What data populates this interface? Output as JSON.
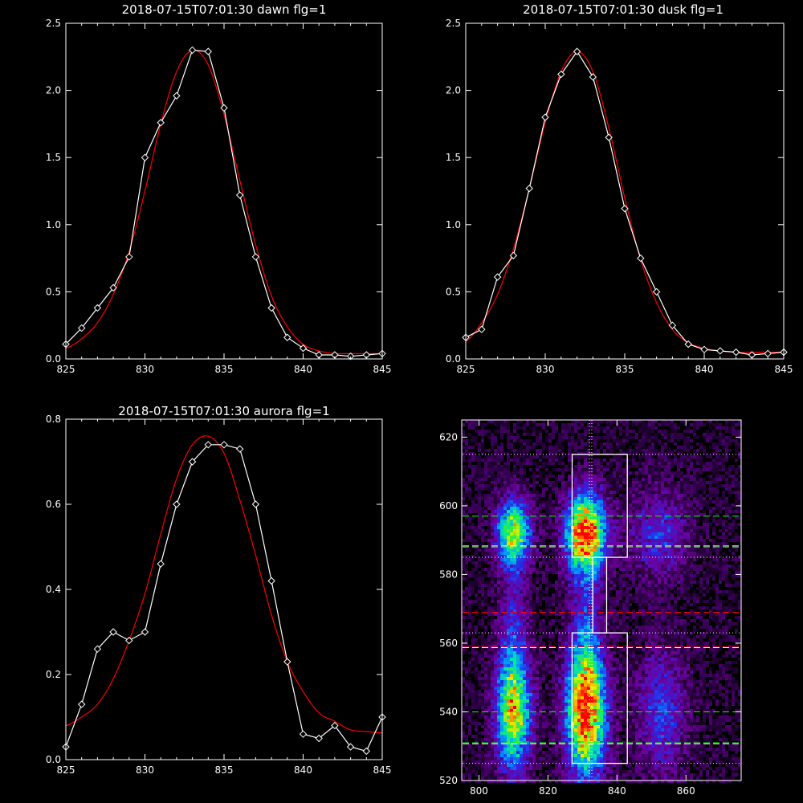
{
  "chart_data": [
    {
      "type": "line",
      "title": "2018-07-15T07:01:30 dawn flg=1",
      "xlim": [
        825,
        845
      ],
      "ylim": [
        0,
        2.5
      ],
      "x_ticks": [
        "825",
        "830",
        "835",
        "840",
        "845"
      ],
      "y_ticks": [
        "0.0",
        "0.5",
        "1.0",
        "1.5",
        "2.0",
        "2.5"
      ],
      "series": [
        {
          "color": "#ffffff",
          "marker": "diamond",
          "x": [
            825,
            826,
            827,
            828,
            829,
            830,
            831,
            832,
            833,
            834,
            835,
            836,
            837,
            838,
            839,
            840,
            841,
            842,
            843,
            844,
            845
          ],
          "y": [
            0.11,
            0.23,
            0.38,
            0.53,
            0.76,
            1.5,
            1.76,
            1.96,
            2.3,
            2.29,
            1.87,
            1.22,
            0.76,
            0.38,
            0.16,
            0.08,
            0.03,
            0.03,
            0.02,
            0.03,
            0.04
          ]
        },
        {
          "color": "#ff0000",
          "marker": "none",
          "x": [
            825,
            826,
            827,
            828,
            829,
            830,
            831,
            832,
            833,
            834,
            835,
            836,
            837,
            838,
            839,
            840,
            841,
            842,
            843,
            844,
            845
          ],
          "y": [
            0.08,
            0.15,
            0.27,
            0.48,
            0.8,
            1.25,
            1.75,
            2.14,
            2.3,
            2.19,
            1.82,
            1.33,
            0.85,
            0.47,
            0.24,
            0.11,
            0.06,
            0.04,
            0.04,
            0.04,
            0.04
          ]
        }
      ]
    },
    {
      "type": "line",
      "title": "2018-07-15T07:01:30 dusk flg=1",
      "xlim": [
        825,
        845
      ],
      "ylim": [
        0,
        2.5
      ],
      "x_ticks": [
        "825",
        "830",
        "835",
        "840",
        "845"
      ],
      "y_ticks": [
        "0.0",
        "0.5",
        "1.0",
        "1.5",
        "2.0",
        "2.5"
      ],
      "series": [
        {
          "color": "#ffffff",
          "marker": "diamond",
          "x": [
            825,
            826,
            827,
            828,
            829,
            830,
            831,
            832,
            833,
            834,
            835,
            836,
            837,
            838,
            839,
            840,
            841,
            842,
            843,
            844,
            845
          ],
          "y": [
            0.16,
            0.22,
            0.61,
            0.77,
            1.27,
            1.8,
            2.12,
            2.29,
            2.1,
            1.65,
            1.12,
            0.75,
            0.5,
            0.25,
            0.11,
            0.07,
            0.06,
            0.05,
            0.03,
            0.04,
            0.05
          ]
        },
        {
          "color": "#ff0000",
          "marker": "none",
          "x": [
            825,
            826,
            827,
            828,
            829,
            830,
            831,
            832,
            833,
            834,
            835,
            836,
            837,
            838,
            839,
            840,
            841,
            842,
            843,
            844,
            845
          ],
          "y": [
            0.13,
            0.27,
            0.48,
            0.82,
            1.27,
            1.76,
            2.14,
            2.29,
            2.14,
            1.72,
            1.2,
            0.74,
            0.42,
            0.22,
            0.12,
            0.08,
            0.06,
            0.05,
            0.05,
            0.05,
            0.05
          ]
        }
      ]
    },
    {
      "type": "line",
      "title": "2018-07-15T07:01:30 aurora flg=1",
      "xlim": [
        825,
        845
      ],
      "ylim": [
        0,
        0.8
      ],
      "x_ticks": [
        "825",
        "830",
        "835",
        "840",
        "845"
      ],
      "y_ticks": [
        "0.0",
        "0.2",
        "0.4",
        "0.6",
        "0.8"
      ],
      "series": [
        {
          "color": "#ffffff",
          "marker": "diamond",
          "x": [
            825,
            826,
            827,
            828,
            829,
            830,
            831,
            832,
            833,
            834,
            835,
            836,
            837,
            838,
            839,
            840,
            841,
            842,
            843,
            844,
            845
          ],
          "y": [
            0.03,
            0.13,
            0.26,
            0.3,
            0.28,
            0.3,
            0.46,
            0.6,
            0.7,
            0.74,
            0.74,
            0.73,
            0.6,
            0.42,
            0.23,
            0.06,
            0.05,
            0.08,
            0.03,
            0.02,
            0.1
          ]
        },
        {
          "color": "#ff0000",
          "marker": "none",
          "x": [
            825,
            826,
            827,
            828,
            829,
            830,
            831,
            832,
            833,
            834,
            835,
            836,
            837,
            838,
            839,
            840,
            841,
            842,
            843,
            844,
            845
          ],
          "y": [
            0.08,
            0.1,
            0.13,
            0.19,
            0.28,
            0.39,
            0.53,
            0.66,
            0.74,
            0.76,
            0.72,
            0.61,
            0.48,
            0.34,
            0.23,
            0.16,
            0.11,
            0.09,
            0.07,
            0.066,
            0.063
          ]
        }
      ]
    },
    {
      "type": "heatmap",
      "colormap": "rainbow",
      "xlim": [
        795,
        876
      ],
      "ylim": [
        520,
        625
      ],
      "x_ticks": [
        "800",
        "820",
        "840",
        "860"
      ],
      "y_ticks": [
        "520",
        "540",
        "560",
        "580",
        "600",
        "620"
      ],
      "blobs": [
        {
          "x": 810,
          "y": 592,
          "sx": 3.5,
          "sy": 7,
          "amp": 0.72
        },
        {
          "x": 831,
          "y": 592,
          "sx": 4,
          "sy": 8,
          "amp": 1.0
        },
        {
          "x": 852,
          "y": 592,
          "sx": 6,
          "sy": 9,
          "amp": 0.28
        },
        {
          "x": 810,
          "y": 540,
          "sx": 3.5,
          "sy": 12,
          "amp": 0.8
        },
        {
          "x": 831,
          "y": 540,
          "sx": 4,
          "sy": 13,
          "amp": 1.0
        },
        {
          "x": 853,
          "y": 540,
          "sx": 5,
          "sy": 13,
          "amp": 0.3
        },
        {
          "x": 810,
          "y": 566,
          "sx": 3,
          "sy": 12,
          "amp": 0.2
        },
        {
          "x": 831,
          "y": 566,
          "sx": 3,
          "sy": 12,
          "amp": 0.22
        }
      ],
      "boxes": [
        {
          "x": [
            827,
            843
          ],
          "y": [
            585,
            615
          ]
        },
        {
          "x": [
            827,
            843
          ],
          "y": [
            525,
            563
          ]
        },
        {
          "x": [
            833,
            837
          ],
          "y": [
            563,
            585
          ]
        }
      ],
      "vline": {
        "x": 832,
        "color": "#ffffff"
      },
      "hlines": [
        {
          "y": 615,
          "color": "#ffffff",
          "style": "dotted"
        },
        {
          "y": 597,
          "color": "#00ff00",
          "style": "dashed"
        },
        {
          "y": 588,
          "color": "#00ff00",
          "style": "dashed"
        },
        {
          "y": 588.3,
          "color": "#ffffff",
          "style": "dashed"
        },
        {
          "y": 585,
          "color": "#ffffff",
          "style": "dotted"
        },
        {
          "y": 569,
          "color": "#ff0000",
          "style": "dashed"
        },
        {
          "y": 563,
          "color": "#ffffff",
          "style": "dotted"
        },
        {
          "y": 559,
          "color": "#ff0000",
          "style": "dashed"
        },
        {
          "y": 558.7,
          "color": "#ffffff",
          "style": "dashed"
        },
        {
          "y": 540,
          "color": "#00ff00",
          "style": "dashed"
        },
        {
          "y": 531,
          "color": "#00ff00",
          "style": "dashed"
        },
        {
          "y": 530.7,
          "color": "#ffffff",
          "style": "dashed"
        },
        {
          "y": 525,
          "color": "#ffffff",
          "style": "dotted"
        }
      ]
    }
  ]
}
